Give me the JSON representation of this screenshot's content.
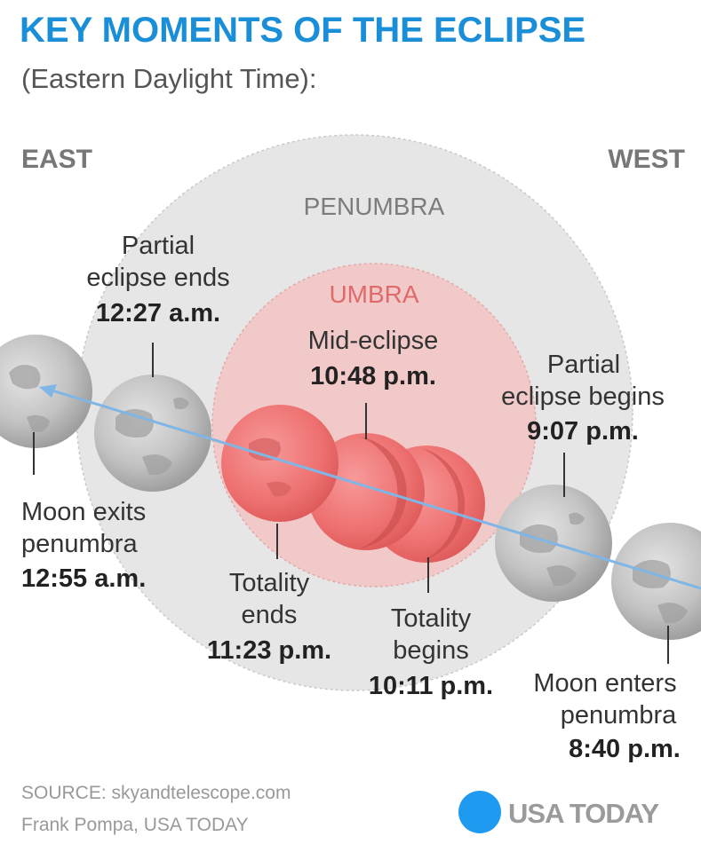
{
  "header": {
    "title": "KEY MOMENTS OF THE ECLIPSE",
    "subtitle": "(Eastern Daylight Time):"
  },
  "directions": {
    "east": "EAST",
    "west": "WEST"
  },
  "zones": {
    "penumbra": "PENUMBRA",
    "umbra": "UMBRA"
  },
  "moments": [
    {
      "line1": "Moon enters",
      "line2": "penumbra",
      "time": "8:40 p.m."
    },
    {
      "line1": "Partial",
      "line2": "eclipse begins",
      "time": "9:07 p.m."
    },
    {
      "line1": "Totality",
      "line2": "begins",
      "time": "10:11 p.m."
    },
    {
      "line1": "Mid-eclipse",
      "line2": "",
      "time": "10:48 p.m."
    },
    {
      "line1": "Totality",
      "line2": "ends",
      "time": "11:23 p.m."
    },
    {
      "line1": "Partial",
      "line2": "eclipse ends",
      "time": "12:27 a.m."
    },
    {
      "line1": "Moon exits",
      "line2": "penumbra",
      "time": "12:55 a.m."
    }
  ],
  "footer": {
    "source": "SOURCE:  skyandtelescope.com",
    "credit": "Frank Pompa, USA TODAY",
    "brand": "USA TODAY"
  },
  "colors": {
    "title": "#1a8fd8",
    "penumbra": "#e6e6e6",
    "umbra": "#f2c9c9",
    "umbra_label": "#e06a6a",
    "red_moon": "#ef7272",
    "gray_moon": "#b9b9b9",
    "path_line": "#7fb6e6",
    "brand_dot": "#1e9af0"
  }
}
